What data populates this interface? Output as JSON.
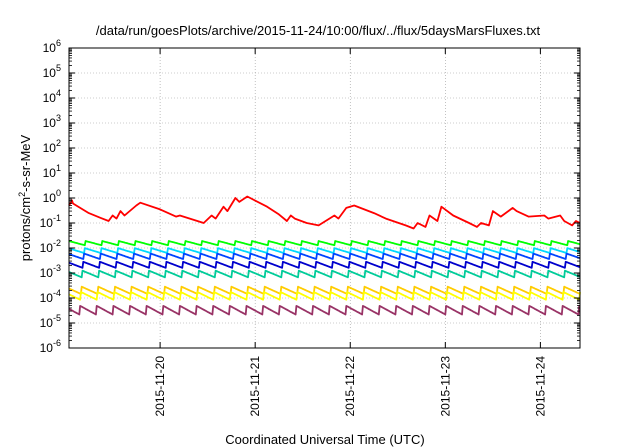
{
  "chart_data": {
    "type": "line",
    "title": "/data/run/goesPlots/archive/2015-11-24/10:00/flux/../flux/5daysMarsFluxes.txt",
    "xlabel": "Coordinated Universal Time (UTC)",
    "ylabel_prefix": "protons/cm",
    "ylabel_sup": "2",
    "ylabel_suffix": "-s-sr-MeV",
    "yscale": "log",
    "ylim": [
      1e-06,
      1000000.0
    ],
    "xlim": [
      "2015-11-19T01:00",
      "2015-11-24T10:00"
    ],
    "grid": true,
    "legend": "none",
    "y_ticks": [
      {
        "base": "10",
        "exp": "-6",
        "value": 1e-06
      },
      {
        "base": "10",
        "exp": "-5",
        "value": 1e-05
      },
      {
        "base": "10",
        "exp": "-4",
        "value": 0.0001
      },
      {
        "base": "10",
        "exp": "-3",
        "value": 0.001
      },
      {
        "base": "10",
        "exp": "-2",
        "value": 0.01
      },
      {
        "base": "10",
        "exp": "-1",
        "value": 0.1
      },
      {
        "base": "10",
        "exp": "0",
        "value": 1
      },
      {
        "base": "10",
        "exp": "1",
        "value": 10
      },
      {
        "base": "10",
        "exp": "2",
        "value": 100
      },
      {
        "base": "10",
        "exp": "3",
        "value": 1000
      },
      {
        "base": "10",
        "exp": "4",
        "value": 10000
      },
      {
        "base": "10",
        "exp": "5",
        "value": 100000
      },
      {
        "base": "10",
        "exp": "6",
        "value": 1000000
      }
    ],
    "x_ticks": [
      {
        "label": "2015-11-20",
        "value": "2015-11-20T00:00"
      },
      {
        "label": "2015-11-21",
        "value": "2015-11-21T00:00"
      },
      {
        "label": "2015-11-22",
        "value": "2015-11-22T00:00"
      },
      {
        "label": "2015-11-23",
        "value": "2015-11-23T00:00"
      },
      {
        "label": "2015-11-24",
        "value": "2015-11-24T00:00"
      }
    ],
    "series": [
      {
        "color": "#ff0000",
        "x": [
          "2015-11-19T01:00",
          "2015-11-19T01:45",
          "2015-11-19T02:00",
          "2015-11-19T06:00",
          "2015-11-19T09:00",
          "2015-11-19T11:00",
          "2015-11-19T12:00",
          "2015-11-19T13:00",
          "2015-11-19T14:00",
          "2015-11-19T15:00",
          "2015-11-19T18:00",
          "2015-11-19T19:00",
          "2015-11-20T00:00",
          "2015-11-20T04:00",
          "2015-11-20T05:00",
          "2015-11-20T11:00",
          "2015-11-20T13:00",
          "2015-11-20T14:00",
          "2015-11-20T16:00",
          "2015-11-20T17:00",
          "2015-11-20T19:00",
          "2015-11-20T20:00",
          "2015-11-20T22:00",
          "2015-11-21T03:00",
          "2015-11-21T06:00",
          "2015-11-21T08:00",
          "2015-11-21T09:00",
          "2015-11-21T10:00",
          "2015-11-21T13:00",
          "2015-11-21T16:00",
          "2015-11-21T20:00",
          "2015-11-21T21:00",
          "2015-11-21T23:00",
          "2015-11-22T01:00",
          "2015-11-22T06:00",
          "2015-11-22T09:00",
          "2015-11-22T14:00",
          "2015-11-22T16:00",
          "2015-11-22T17:00",
          "2015-11-22T19:00",
          "2015-11-22T20:00",
          "2015-11-22T22:00",
          "2015-11-22T23:00",
          "2015-11-23T02:00",
          "2015-11-23T06:00",
          "2015-11-23T08:00",
          "2015-11-23T09:00",
          "2015-11-23T11:00",
          "2015-11-23T12:00",
          "2015-11-23T14:00",
          "2015-11-23T17:00",
          "2015-11-23T18:00",
          "2015-11-23T21:00",
          "2015-11-24T01:00",
          "2015-11-24T02:00",
          "2015-11-24T05:00",
          "2015-11-24T06:00",
          "2015-11-24T08:00",
          "2015-11-24T09:00",
          "2015-11-24T10:00"
        ],
        "values": [
          0.5,
          0.8,
          0.6,
          0.25,
          0.16,
          0.12,
          0.2,
          0.15,
          0.3,
          0.2,
          0.5,
          0.65,
          0.35,
          0.18,
          0.2,
          0.1,
          0.2,
          0.15,
          0.45,
          0.3,
          1.0,
          0.7,
          1.15,
          0.45,
          0.22,
          0.12,
          0.2,
          0.15,
          0.1,
          0.08,
          0.2,
          0.15,
          0.4,
          0.5,
          0.25,
          0.15,
          0.08,
          0.06,
          0.1,
          0.07,
          0.2,
          0.12,
          0.45,
          0.2,
          0.1,
          0.07,
          0.1,
          0.08,
          0.3,
          0.18,
          0.4,
          0.3,
          0.18,
          0.2,
          0.15,
          0.2,
          0.12,
          0.08,
          0.12,
          0.1
        ]
      },
      {
        "color": "#00ff00",
        "x": [
          "2015-11-19T01:00",
          "2015-11-24T10:00"
        ],
        "values": [
          0.0155,
          0.0155
        ],
        "amplitude": 1.5,
        "period_hours": 4.2,
        "phase": 0.0
      },
      {
        "color": "#00d8ff",
        "x": [
          "2015-11-19T01:00",
          "2015-11-24T10:00"
        ],
        "values": [
          0.0078,
          0.0078
        ],
        "amplitude": 1.6,
        "period_hours": 4.2,
        "phase": 0.3
      },
      {
        "color": "#0044ff",
        "x": [
          "2015-11-19T01:00",
          "2015-11-24T10:00"
        ],
        "values": [
          0.0046,
          0.0046
        ],
        "amplitude": 1.7,
        "period_hours": 4.2,
        "phase": 0.6
      },
      {
        "color": "#0000cc",
        "x": [
          "2015-11-19T01:00",
          "2015-11-24T10:00"
        ],
        "values": [
          0.0021,
          0.0021
        ],
        "amplitude": 1.8,
        "period_hours": 4.2,
        "phase": 0.9
      },
      {
        "color": "#00cc99",
        "x": [
          "2015-11-19T01:00",
          "2015-11-24T10:00"
        ],
        "values": [
          0.0009,
          0.0009
        ],
        "amplitude": 1.9,
        "period_hours": 4.2,
        "phase": 1.2
      },
      {
        "color": "#ffcc00",
        "x": [
          "2015-11-19T01:00",
          "2015-11-24T10:00"
        ],
        "values": [
          0.0002,
          0.0002
        ],
        "amplitude": 2.0,
        "period_hours": 4.2,
        "phase": 1.5
      },
      {
        "color": "#ffff00",
        "x": [
          "2015-11-19T01:00",
          "2015-11-24T10:00"
        ],
        "values": [
          0.00012,
          0.00012
        ],
        "amplitude": 2.1,
        "period_hours": 4.2,
        "phase": 1.8
      },
      {
        "color": "#993366",
        "x": [
          "2015-11-19T01:00",
          "2015-11-24T10:00"
        ],
        "values": [
          3.2e-05,
          3.2e-05
        ],
        "amplitude": 2.3,
        "period_hours": 4.2,
        "phase": 2.1
      }
    ]
  }
}
